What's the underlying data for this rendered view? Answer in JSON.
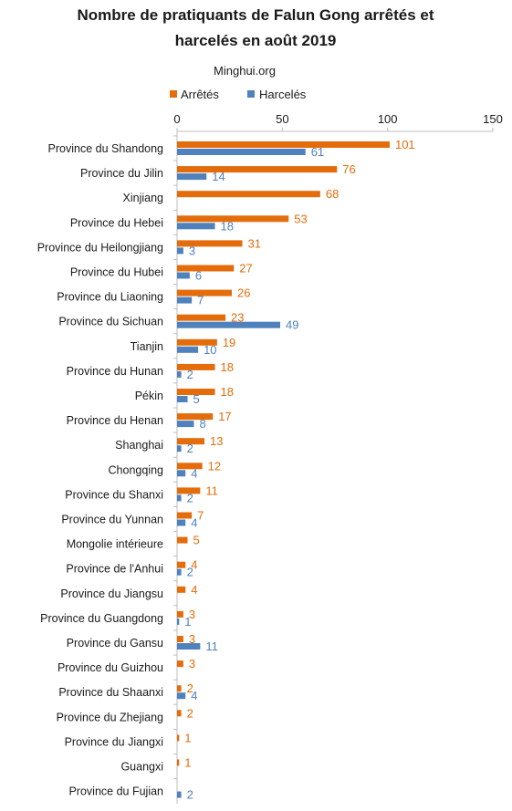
{
  "colors": {
    "arretes": "#e46c0a",
    "harceles": "#4f81bd",
    "axis": "#bfbfbf",
    "text": "#1a1a1a"
  },
  "chart_data": {
    "type": "bar",
    "orientation": "horizontal",
    "title_line1": "Nombre de pratiquants  de Falun Gong arrêtés et",
    "title_line2": "harcelés en août 2019",
    "subtitle": "Minghui.org",
    "xlim": [
      0,
      150
    ],
    "xticks": [
      0,
      50,
      100,
      150
    ],
    "xtick_labels": [
      "0",
      "50",
      "100",
      "150"
    ],
    "x_axis_position": "top",
    "legend_position": "top-left",
    "grid": false,
    "categories": [
      "Province du Shandong",
      "Province du Jilin",
      "Xinjiang",
      "Province du Hebei",
      "Province du Heilongjiang",
      "Province du Hubei",
      "Province du Liaoning",
      "Province du Sichuan",
      "Tianjin",
      "Province du Hunan",
      "Pékin",
      "Province du Henan",
      "Shanghai",
      "Chongqing",
      "Province du Shanxi",
      "Province du Yunnan",
      "Mongolie intérieure",
      "Province de l'Anhui",
      "Province du Jiangsu",
      "Province du Guangdong",
      "Province du Gansu",
      "Province du Guizhou",
      "Province du Shaanxi",
      "Province du Zhejiang",
      "Province du Jiangxi",
      "Guangxi",
      "Province du Fujian"
    ],
    "series": [
      {
        "name": "Arrêtés",
        "color": "#e46c0a",
        "values": [
          101,
          76,
          68,
          53,
          31,
          27,
          26,
          23,
          19,
          18,
          18,
          17,
          13,
          12,
          11,
          7,
          5,
          4,
          4,
          3,
          3,
          3,
          2,
          2,
          1,
          1,
          null
        ]
      },
      {
        "name": "Harcelés",
        "color": "#4f81bd",
        "values": [
          61,
          14,
          null,
          18,
          3,
          6,
          7,
          49,
          10,
          2,
          5,
          8,
          2,
          4,
          2,
          4,
          null,
          2,
          null,
          1,
          11,
          null,
          4,
          null,
          null,
          null,
          2
        ]
      }
    ]
  }
}
